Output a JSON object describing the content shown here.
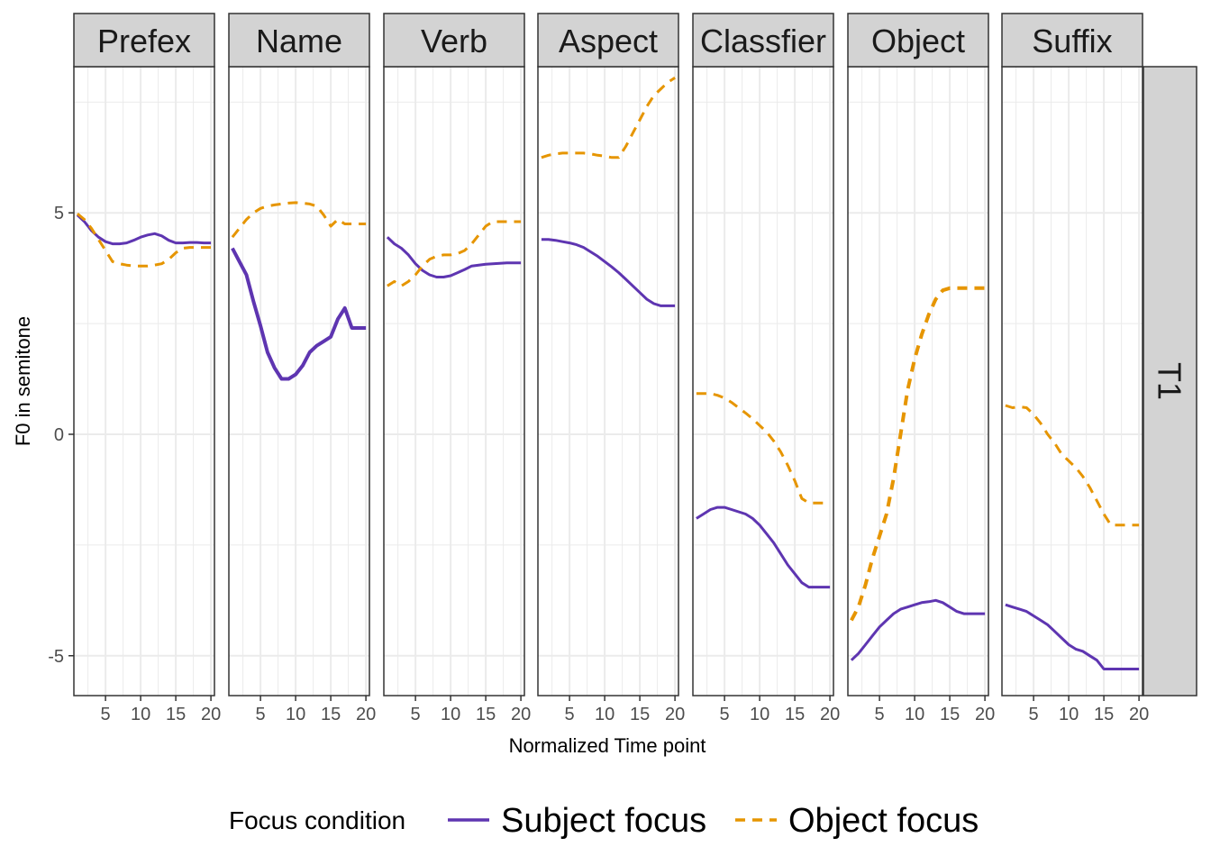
{
  "chart_data": {
    "type": "line",
    "facets": [
      "Prefex",
      "Name",
      "Verb",
      "Aspect",
      "Classfier",
      "Object",
      "Suffix"
    ],
    "row_strip": "T1",
    "xlabel": "Normalized Time point",
    "ylabel": "F0 in semitone",
    "xlim": [
      0.5,
      20.5
    ],
    "ylim": [
      -5.9,
      8.3
    ],
    "x_ticks": [
      5,
      10,
      15,
      20
    ],
    "x_tick_labels": [
      "5",
      "10",
      "15",
      "20"
    ],
    "y_ticks": [
      -5,
      0,
      5
    ],
    "y_tick_labels": [
      "-5",
      "0",
      "5"
    ],
    "grid": true,
    "legend": {
      "title": "Focus condition",
      "position": "bottom",
      "entries": [
        "Subject focus",
        "Object focus"
      ]
    },
    "colors": {
      "subject": "#5e35b1",
      "object": "#e69500",
      "strip_bg": "#d3d3d3",
      "grid": "#ebebeb"
    },
    "series": [
      {
        "name": "Subject focus",
        "linestyle": "solid",
        "panels": [
          {
            "x": [
              1,
              2,
              3,
              4,
              5,
              6,
              7,
              8,
              9,
              10,
              11,
              12,
              13,
              14,
              15,
              16,
              17,
              18,
              19,
              20
            ],
            "y": [
              4.95,
              4.8,
              4.6,
              4.45,
              4.35,
              4.3,
              4.3,
              4.32,
              4.38,
              4.45,
              4.5,
              4.53,
              4.48,
              4.38,
              4.32,
              4.32,
              4.33,
              4.33,
              4.32,
              4.32
            ],
            "width": [
              3,
              3,
              3,
              3,
              3,
              3,
              3,
              3,
              3,
              3,
              3,
              3,
              3,
              3,
              3,
              3,
              3,
              3,
              3,
              3
            ]
          },
          {
            "x": [
              1,
              2,
              3,
              4,
              5,
              6,
              7,
              8,
              9,
              10,
              11,
              12,
              13,
              14,
              15,
              16,
              17,
              18,
              19,
              20
            ],
            "y": [
              4.2,
              3.9,
              3.6,
              3.0,
              2.45,
              1.85,
              1.5,
              1.25,
              1.25,
              1.35,
              1.55,
              1.85,
              2.0,
              2.1,
              2.2,
              2.6,
              2.85,
              2.4,
              2.4,
              2.4
            ],
            "width": [
              4,
              4,
              4,
              4,
              4,
              4,
              4,
              4,
              4,
              4,
              4,
              4,
              4,
              4,
              4,
              4,
              4,
              4,
              4,
              4
            ]
          },
          {
            "x": [
              1,
              2,
              3,
              4,
              5,
              6,
              7,
              8,
              9,
              10,
              11,
              12,
              13,
              14,
              15,
              16,
              17,
              18,
              19,
              20
            ],
            "y": [
              4.45,
              4.3,
              4.2,
              4.05,
              3.85,
              3.7,
              3.6,
              3.55,
              3.55,
              3.58,
              3.65,
              3.72,
              3.8,
              3.82,
              3.84,
              3.85,
              3.86,
              3.87,
              3.87,
              3.87
            ],
            "width": [
              3,
              3,
              3,
              3,
              3,
              3,
              3,
              3,
              3,
              3,
              3,
              3,
              3,
              3,
              3,
              3,
              3,
              3,
              3,
              3
            ]
          },
          {
            "x": [
              1,
              2,
              3,
              4,
              5,
              6,
              7,
              8,
              9,
              10,
              11,
              12,
              13,
              14,
              15,
              16,
              17,
              18,
              19,
              20
            ],
            "y": [
              4.4,
              4.4,
              4.38,
              4.35,
              4.32,
              4.28,
              4.22,
              4.12,
              4.02,
              3.9,
              3.78,
              3.65,
              3.5,
              3.35,
              3.2,
              3.05,
              2.95,
              2.9,
              2.9,
              2.9
            ],
            "width": [
              3,
              3,
              3,
              3,
              3,
              3,
              3,
              3,
              3,
              3,
              3,
              3,
              3,
              3,
              3,
              3,
              3,
              3,
              3,
              3
            ]
          },
          {
            "x": [
              1,
              2,
              3,
              4,
              5,
              6,
              7,
              8,
              9,
              10,
              11,
              12,
              13,
              14,
              15,
              16,
              17,
              18,
              19,
              20
            ],
            "y": [
              -1.9,
              -1.8,
              -1.7,
              -1.65,
              -1.65,
              -1.7,
              -1.75,
              -1.8,
              -1.9,
              -2.05,
              -2.25,
              -2.45,
              -2.7,
              -2.95,
              -3.15,
              -3.35,
              -3.45,
              -3.45,
              -3.45,
              -3.45
            ],
            "width": [
              3,
              3,
              3,
              3,
              3,
              3,
              3,
              3,
              3,
              3,
              3,
              3,
              3,
              3,
              3,
              3,
              3,
              3,
              3,
              3
            ]
          },
          {
            "x": [
              1,
              2,
              3,
              4,
              5,
              6,
              7,
              8,
              9,
              10,
              11,
              12,
              13,
              14,
              15,
              16,
              17,
              18,
              19,
              20
            ],
            "y": [
              -5.1,
              -4.95,
              -4.75,
              -4.55,
              -4.35,
              -4.2,
              -4.05,
              -3.95,
              -3.9,
              -3.85,
              -3.8,
              -3.78,
              -3.75,
              -3.8,
              -3.9,
              -4.0,
              -4.05,
              -4.05,
              -4.05,
              -4.05
            ],
            "width": [
              3,
              3,
              3,
              3,
              3,
              3,
              3,
              3,
              3,
              3,
              3,
              3,
              3,
              3,
              3,
              3,
              3,
              3,
              3,
              3
            ]
          },
          {
            "x": [
              1,
              2,
              3,
              4,
              5,
              6,
              7,
              8,
              9,
              10,
              11,
              12,
              13,
              14,
              15,
              16,
              17,
              18,
              19,
              20
            ],
            "y": [
              -3.85,
              -3.9,
              -3.95,
              -4.0,
              -4.1,
              -4.2,
              -4.3,
              -4.45,
              -4.6,
              -4.75,
              -4.85,
              -4.9,
              -5.0,
              -5.1,
              -5.3,
              -5.3,
              -5.3,
              -5.3,
              -5.3,
              -5.3
            ],
            "width": [
              3,
              3,
              3,
              3,
              3,
              3,
              3,
              3,
              3,
              3,
              3,
              3,
              3,
              3,
              3,
              3,
              3,
              3,
              3,
              3
            ]
          }
        ]
      },
      {
        "name": "Object focus",
        "linestyle": "dashed",
        "panels": [
          {
            "x": [
              1,
              2,
              3,
              4,
              5,
              6,
              7,
              8,
              9,
              10,
              11,
              12,
              13,
              14,
              15,
              16,
              17,
              18,
              19,
              20
            ],
            "y": [
              4.98,
              4.85,
              4.65,
              4.4,
              4.15,
              3.9,
              3.85,
              3.82,
              3.8,
              3.8,
              3.8,
              3.82,
              3.85,
              3.95,
              4.1,
              4.2,
              4.22,
              4.22,
              4.22,
              4.22
            ],
            "width": [
              3,
              3,
              3,
              3,
              3,
              3,
              3,
              3,
              3,
              3,
              3,
              3,
              3,
              3,
              3,
              3,
              3,
              3,
              3,
              3
            ]
          },
          {
            "x": [
              1,
              2,
              3,
              4,
              5,
              6,
              7,
              8,
              9,
              10,
              11,
              12,
              13,
              14,
              15,
              16,
              17,
              18,
              19,
              20
            ],
            "y": [
              4.45,
              4.65,
              4.85,
              5.0,
              5.1,
              5.15,
              5.18,
              5.2,
              5.22,
              5.23,
              5.22,
              5.2,
              5.15,
              4.95,
              4.7,
              4.85,
              4.75,
              4.75,
              4.75,
              4.75
            ],
            "width": [
              3,
              3,
              3,
              3,
              3,
              3,
              3,
              3,
              3,
              3,
              3,
              3,
              3,
              3,
              3,
              3,
              3,
              3,
              3,
              3
            ]
          },
          {
            "x": [
              1,
              2,
              3,
              4,
              5,
              6,
              7,
              8,
              9,
              10,
              11,
              12,
              13,
              14,
              15,
              16,
              17,
              18,
              19,
              20
            ],
            "y": [
              3.35,
              3.45,
              3.35,
              3.45,
              3.6,
              3.8,
              3.95,
              4.02,
              4.05,
              4.05,
              4.08,
              4.15,
              4.3,
              4.5,
              4.7,
              4.8,
              4.8,
              4.8,
              4.8,
              4.8
            ],
            "width": [
              3,
              3,
              3,
              3,
              3,
              3,
              3,
              3,
              3,
              3,
              3,
              3,
              3,
              3,
              3,
              3,
              3,
              3,
              3,
              3
            ]
          },
          {
            "x": [
              1,
              2,
              3,
              4,
              5,
              6,
              7,
              8,
              9,
              10,
              11,
              12,
              13,
              14,
              15,
              16,
              17,
              18,
              19,
              20
            ],
            "y": [
              6.25,
              6.3,
              6.33,
              6.35,
              6.35,
              6.35,
              6.35,
              6.33,
              6.3,
              6.28,
              6.25,
              6.25,
              6.5,
              6.8,
              7.1,
              7.4,
              7.65,
              7.8,
              7.95,
              8.05
            ],
            "width": [
              3,
              3,
              3,
              3,
              3,
              3,
              3,
              3,
              3,
              3,
              3,
              3,
              3,
              3,
              3,
              3,
              3,
              3,
              3,
              3
            ]
          },
          {
            "x": [
              1,
              2,
              3,
              4,
              5,
              6,
              7,
              8,
              9,
              10,
              11,
              12,
              13,
              14,
              15,
              16,
              17,
              18,
              19,
              20
            ],
            "y": [
              0.92,
              0.92,
              0.92,
              0.88,
              0.82,
              0.72,
              0.6,
              0.48,
              0.35,
              0.2,
              0.05,
              -0.15,
              -0.4,
              -0.7,
              -1.05,
              -1.45,
              -1.55,
              -1.55,
              -1.55,
              -1.55
            ],
            "width": [
              3,
              3,
              3,
              3,
              3,
              3,
              3,
              3,
              3,
              3,
              3,
              3,
              3,
              3,
              3,
              3,
              3,
              3,
              3,
              3
            ]
          },
          {
            "x": [
              1,
              2,
              3,
              4,
              5,
              6,
              7,
              8,
              9,
              10,
              11,
              12,
              13,
              14,
              15,
              16,
              17,
              18,
              19,
              20
            ],
            "y": [
              -4.2,
              -3.9,
              -3.4,
              -2.8,
              -2.3,
              -1.8,
              -1.0,
              0.0,
              1.0,
              1.7,
              2.25,
              2.7,
              3.05,
              3.25,
              3.3,
              3.3,
              3.3,
              3.3,
              3.3,
              3.3
            ],
            "width": [
              4,
              4,
              4,
              4,
              4,
              4,
              4,
              4,
              4,
              4,
              4,
              4,
              4,
              4,
              4,
              4,
              4,
              4,
              4,
              4
            ]
          },
          {
            "x": [
              1,
              2,
              3,
              4,
              5,
              6,
              7,
              8,
              9,
              10,
              11,
              12,
              13,
              14,
              15,
              16,
              17,
              18,
              19,
              20
            ],
            "y": [
              0.65,
              0.6,
              0.62,
              0.6,
              0.45,
              0.25,
              0.0,
              -0.2,
              -0.45,
              -0.6,
              -0.75,
              -0.95,
              -1.2,
              -1.5,
              -1.8,
              -2.05,
              -2.05,
              -2.05,
              -2.05,
              -2.05
            ],
            "width": [
              3,
              3,
              3,
              3,
              3,
              3,
              3,
              3,
              3,
              3,
              3,
              3,
              3,
              3,
              3,
              3,
              3,
              3,
              3,
              3
            ]
          }
        ]
      }
    ]
  }
}
